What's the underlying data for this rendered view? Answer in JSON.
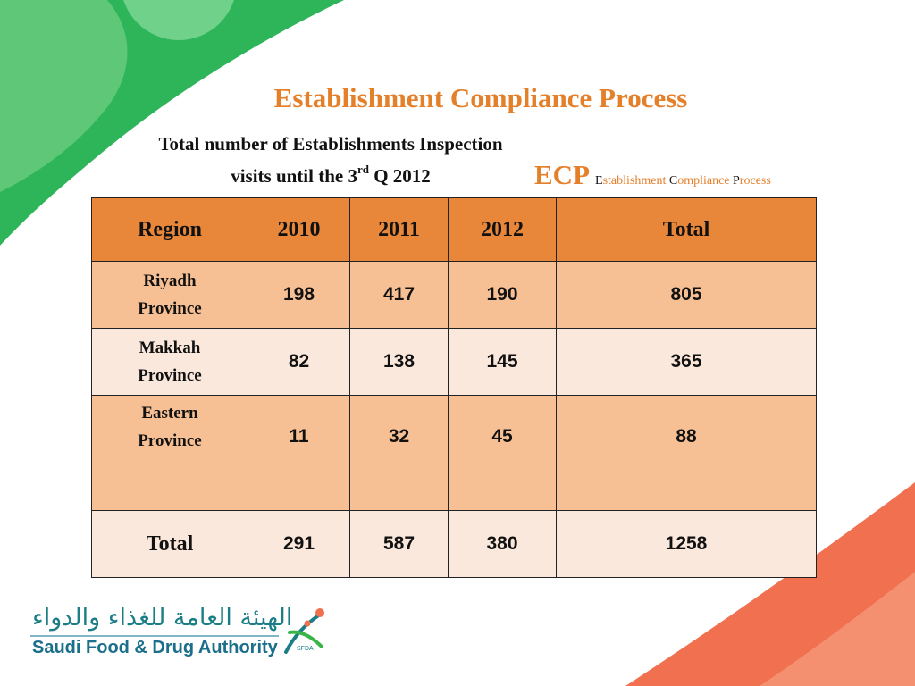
{
  "slide": {
    "title": "Establishment Compliance Process",
    "subtitle_line1": "Total number of Establishments Inspection",
    "subtitle_line2_pre": "visits until the 3",
    "subtitle_line2_sup": "rd",
    "subtitle_line2_post": " Q 2012",
    "ecp": {
      "abbr": "ECP",
      "words": [
        {
          "cap": "E",
          "rest": "stablishment "
        },
        {
          "cap": "C",
          "rest": "ompliance "
        },
        {
          "cap": "P",
          "rest": "rocess"
        }
      ]
    }
  },
  "table": {
    "headers": [
      "Region",
      "2010",
      "2011",
      "2012",
      "Total"
    ],
    "rows": [
      {
        "region_line1": "Riyadh",
        "region_line2": "Province",
        "v2010": "198",
        "v2011": "417",
        "v2012": "190",
        "total": "805"
      },
      {
        "region_line1": "Makkah",
        "region_line2": "Province",
        "v2010": "82",
        "v2011": "138",
        "v2012": "145",
        "total": "365"
      },
      {
        "region_line1": "Eastern",
        "region_line2": "Province",
        "v2010": "11",
        "v2011": "32",
        "v2012": "45",
        "total": "88"
      }
    ],
    "total_row": {
      "label": "Total",
      "v2010": "291",
      "v2011": "587",
      "v2012": "380",
      "total": "1258"
    }
  },
  "logo": {
    "arabic": "الهيئة العامة للغذاء والدواء",
    "english": "Saudi Food & Drug Authority",
    "emblem_text": "SFDA"
  },
  "colors": {
    "accent_orange": "#e47f2a",
    "header_fill": "#e8873a",
    "row_dark": "#f7c094",
    "row_light": "#fbe8dc",
    "green_dark": "#2eb55a",
    "green_light": "#5ec878",
    "coral": "#f07050"
  }
}
